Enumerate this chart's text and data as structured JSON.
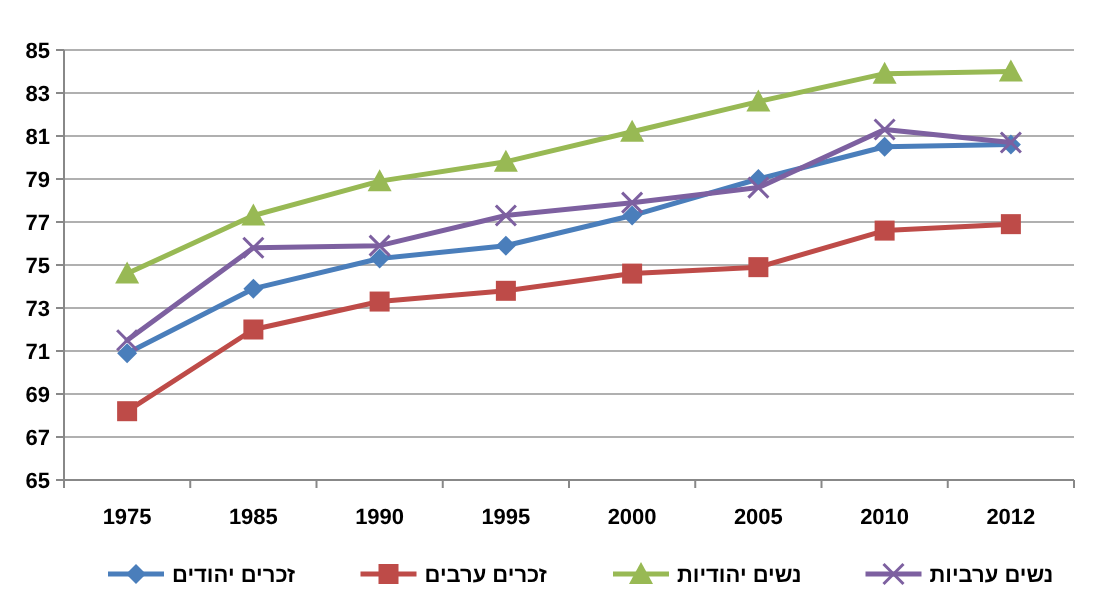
{
  "chart_data": {
    "type": "line",
    "categories": [
      "1975",
      "1985",
      "1990",
      "1995",
      "2000",
      "2005",
      "2010",
      "2012"
    ],
    "ylim": [
      65,
      85
    ],
    "yticks": [
      65,
      67,
      69,
      71,
      73,
      75,
      77,
      79,
      81,
      83,
      85
    ],
    "grid": "y",
    "legend": "bottom",
    "series": [
      {
        "name": "זכרים יהודים",
        "color": "#4a7ebb",
        "marker": "diamond",
        "values": [
          70.9,
          73.9,
          75.3,
          75.9,
          77.3,
          79.0,
          80.5,
          80.6
        ]
      },
      {
        "name": "זכרים ערבים",
        "color": "#be4b48",
        "marker": "square",
        "values": [
          68.2,
          72.0,
          73.3,
          73.8,
          74.6,
          74.9,
          76.6,
          76.9
        ]
      },
      {
        "name": "נשים יהודיות",
        "color": "#98b954",
        "marker": "triangle",
        "values": [
          74.6,
          77.3,
          78.9,
          79.8,
          81.2,
          82.6,
          83.9,
          84.0
        ]
      },
      {
        "name": "נשים ערביות",
        "color": "#7d60a0",
        "marker": "cross",
        "values": [
          71.5,
          75.8,
          75.9,
          77.3,
          77.9,
          78.6,
          81.3,
          80.7
        ]
      }
    ]
  }
}
